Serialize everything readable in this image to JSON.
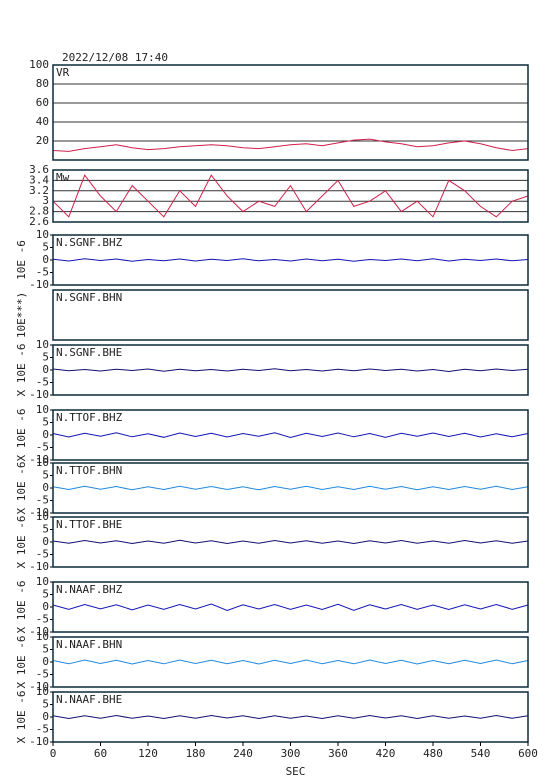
{
  "chart_data": [
    {
      "type": "line",
      "title": "2022/12/08 17:40",
      "label": "VR",
      "color": "#d0204a",
      "ylim": [
        0,
        100
      ],
      "yticks": [
        20,
        40,
        60,
        80,
        100
      ],
      "grid": true,
      "xlim": [
        0,
        600
      ],
      "x": [
        0,
        20,
        40,
        60,
        80,
        100,
        120,
        140,
        160,
        180,
        200,
        220,
        240,
        260,
        280,
        300,
        320,
        340,
        360,
        380,
        400,
        420,
        440,
        460,
        480,
        500,
        520,
        540,
        560,
        580,
        600
      ],
      "values": [
        10,
        9,
        12,
        14,
        16,
        13,
        11,
        12,
        14,
        15,
        16,
        15,
        13,
        12,
        14,
        16,
        17,
        15,
        18,
        21,
        22,
        19,
        17,
        14,
        15,
        18,
        20,
        17,
        13,
        10,
        12
      ]
    },
    {
      "type": "line",
      "label": "Mw",
      "color": "#d0204a",
      "ylim": [
        2.6,
        3.6
      ],
      "yticks": [
        2.6,
        2.8,
        3,
        3.2,
        3.4,
        3.6
      ],
      "grid": true,
      "xlim": [
        0,
        600
      ],
      "x": [
        0,
        20,
        40,
        60,
        80,
        100,
        120,
        140,
        160,
        180,
        200,
        220,
        240,
        260,
        280,
        300,
        320,
        340,
        360,
        380,
        400,
        420,
        440,
        460,
        480,
        500,
        520,
        540,
        560,
        580,
        600
      ],
      "values": [
        3.0,
        2.7,
        3.5,
        3.1,
        2.8,
        3.3,
        3.0,
        2.7,
        3.2,
        2.9,
        3.5,
        3.1,
        2.8,
        3.0,
        2.9,
        3.3,
        2.8,
        3.1,
        3.4,
        2.9,
        3.0,
        3.2,
        2.8,
        3.0,
        2.7,
        3.4,
        3.2,
        2.9,
        2.7,
        3.0,
        3.1
      ]
    },
    {
      "type": "line",
      "label": "N.SGNF.BHZ",
      "ylabel": "10E -6",
      "color": "#1414b4",
      "ylim": [
        -10,
        10
      ],
      "yticks": [
        -10,
        -5,
        0,
        5,
        10
      ],
      "xlim": [
        0,
        600
      ],
      "x": [
        0,
        20,
        40,
        60,
        80,
        100,
        120,
        140,
        160,
        180,
        200,
        220,
        240,
        260,
        280,
        300,
        320,
        340,
        360,
        380,
        400,
        420,
        440,
        460,
        480,
        500,
        520,
        540,
        560,
        580,
        600
      ],
      "values": [
        0.3,
        -0.4,
        0.5,
        -0.2,
        0.4,
        -0.5,
        0.2,
        -0.3,
        0.4,
        -0.4,
        0.3,
        -0.2,
        0.5,
        -0.3,
        0.2,
        -0.4,
        0.4,
        -0.3,
        0.3,
        -0.5,
        0.2,
        -0.2,
        0.4,
        -0.3,
        0.5,
        -0.4,
        0.3,
        -0.2,
        0.4,
        -0.3,
        0.2
      ]
    },
    {
      "type": "line",
      "label": "N.SGNF.BHN",
      "ylabel": "10E***)",
      "xlim": [
        0,
        600
      ]
    },
    {
      "type": "line",
      "label": "N.SGNF.BHE",
      "ylabel": "X 10E -6",
      "color": "#101070",
      "ylim": [
        -10,
        10
      ],
      "yticks": [
        -10,
        -5,
        0,
        5,
        10
      ],
      "xlim": [
        0,
        600
      ],
      "x": [
        0,
        20,
        40,
        60,
        80,
        100,
        120,
        140,
        160,
        180,
        200,
        220,
        240,
        260,
        280,
        300,
        320,
        340,
        360,
        380,
        400,
        420,
        440,
        460,
        480,
        500,
        520,
        540,
        560,
        580,
        600
      ],
      "values": [
        0.4,
        -0.3,
        0.2,
        -0.4,
        0.3,
        -0.2,
        0.4,
        -0.5,
        0.3,
        -0.3,
        0.2,
        -0.4,
        0.3,
        -0.2,
        0.5,
        -0.3,
        0.2,
        -0.4,
        0.3,
        -0.3,
        0.4,
        -0.2,
        0.3,
        -0.4,
        0.2,
        -0.6,
        0.3,
        -0.3,
        0.4,
        -0.2,
        0.3
      ]
    },
    {
      "type": "line",
      "label": "N.TTOF.BHZ",
      "ylabel": "X 10E -6",
      "color": "#1414b4",
      "ylim": [
        -10,
        10
      ],
      "yticks": [
        -10,
        -5,
        0,
        5,
        10
      ],
      "xlim": [
        0,
        600
      ],
      "x": [
        0,
        20,
        40,
        60,
        80,
        100,
        120,
        140,
        160,
        180,
        200,
        220,
        240,
        260,
        280,
        300,
        320,
        340,
        360,
        380,
        400,
        420,
        440,
        460,
        480,
        500,
        520,
        540,
        560,
        580,
        600
      ],
      "values": [
        0.6,
        -0.8,
        0.7,
        -0.5,
        0.9,
        -0.7,
        0.5,
        -0.9,
        0.8,
        -0.6,
        0.7,
        -0.8,
        0.6,
        -0.5,
        0.9,
        -1.0,
        0.7,
        -0.6,
        0.8,
        -0.7,
        0.6,
        -0.9,
        0.7,
        -0.5,
        0.8,
        -0.6,
        0.7,
        -0.8,
        0.5,
        -0.7,
        0.6
      ]
    },
    {
      "type": "line",
      "label": "N.TTOF.BHN",
      "ylabel": "X 10E -6",
      "color": "#2088e0",
      "ylim": [
        -10,
        10
      ],
      "yticks": [
        -10,
        -5,
        0,
        5,
        10
      ],
      "xlim": [
        0,
        600
      ],
      "x": [
        0,
        20,
        40,
        60,
        80,
        100,
        120,
        140,
        160,
        180,
        200,
        220,
        240,
        260,
        280,
        300,
        320,
        340,
        360,
        380,
        400,
        420,
        440,
        460,
        480,
        500,
        520,
        540,
        560,
        580,
        600
      ],
      "values": [
        0.5,
        -0.6,
        0.7,
        -0.5,
        0.6,
        -0.7,
        0.5,
        -0.6,
        0.7,
        -0.5,
        0.6,
        -0.6,
        0.5,
        -0.7,
        0.6,
        -0.5,
        0.7,
        -0.6,
        0.5,
        -0.6,
        0.7,
        -0.5,
        0.6,
        -0.7,
        0.5,
        -0.6,
        0.6,
        -0.5,
        0.7,
        -0.6,
        0.5
      ]
    },
    {
      "type": "line",
      "label": "N.TTOF.BHE",
      "ylabel": "X 10E -6",
      "color": "#101070",
      "ylim": [
        -10,
        10
      ],
      "yticks": [
        -10,
        -5,
        0,
        5,
        10
      ],
      "xlim": [
        0,
        600
      ],
      "x": [
        0,
        20,
        40,
        60,
        80,
        100,
        120,
        140,
        160,
        180,
        200,
        220,
        240,
        260,
        280,
        300,
        320,
        340,
        360,
        380,
        400,
        420,
        440,
        460,
        480,
        500,
        520,
        540,
        560,
        580,
        600
      ],
      "values": [
        0.4,
        -0.5,
        0.6,
        -0.4,
        0.5,
        -0.6,
        0.4,
        -0.5,
        0.7,
        -0.4,
        0.5,
        -0.6,
        0.4,
        -0.5,
        0.6,
        -0.4,
        0.5,
        -0.5,
        0.4,
        -0.6,
        0.5,
        -0.4,
        0.6,
        -0.5,
        0.4,
        -0.5,
        0.6,
        -0.4,
        0.5,
        -0.5,
        0.4
      ]
    },
    {
      "type": "line",
      "label": "N.NAAF.BHZ",
      "ylabel": "X 10E -6",
      "color": "#1414b4",
      "ylim": [
        -10,
        10
      ],
      "yticks": [
        -10,
        -5,
        0,
        5,
        10
      ],
      "xlim": [
        0,
        600
      ],
      "x": [
        0,
        20,
        40,
        60,
        80,
        100,
        120,
        140,
        160,
        180,
        200,
        220,
        240,
        260,
        280,
        300,
        320,
        340,
        360,
        380,
        400,
        420,
        440,
        460,
        480,
        500,
        520,
        540,
        560,
        580,
        600
      ],
      "values": [
        0.8,
        -0.9,
        1.0,
        -0.7,
        0.9,
        -1.1,
        0.8,
        -0.9,
        1.0,
        -0.8,
        1.2,
        -1.4,
        0.9,
        -0.8,
        1.0,
        -0.9,
        0.8,
        -1.0,
        1.1,
        -1.3,
        0.9,
        -0.8,
        1.0,
        -0.9,
        0.8,
        -1.0,
        0.9,
        -0.8,
        1.0,
        -0.9,
        0.8
      ]
    },
    {
      "type": "line",
      "label": "N.NAAF.BHN",
      "ylabel": "X 10E -6",
      "color": "#2088e0",
      "ylim": [
        -10,
        10
      ],
      "yticks": [
        -10,
        -5,
        0,
        5,
        10
      ],
      "xlim": [
        0,
        600
      ],
      "x": [
        0,
        20,
        40,
        60,
        80,
        100,
        120,
        140,
        160,
        180,
        200,
        220,
        240,
        260,
        280,
        300,
        320,
        340,
        360,
        380,
        400,
        420,
        440,
        460,
        480,
        500,
        520,
        540,
        560,
        580,
        600
      ],
      "values": [
        0.6,
        -0.7,
        0.8,
        -0.6,
        0.7,
        -0.8,
        0.6,
        -0.7,
        0.8,
        -0.6,
        0.7,
        -0.7,
        0.6,
        -0.8,
        0.7,
        -0.6,
        0.8,
        -0.7,
        0.6,
        -0.7,
        0.8,
        -0.6,
        0.7,
        -0.8,
        0.6,
        -0.7,
        0.7,
        -0.6,
        0.8,
        -0.7,
        0.6
      ]
    },
    {
      "type": "line",
      "label": "N.NAAF.BHE",
      "ylabel": "X 10E -6",
      "xlabel": "SEC",
      "color": "#101070",
      "ylim": [
        -10,
        10
      ],
      "yticks": [
        -10,
        -5,
        0,
        5,
        10
      ],
      "xlim": [
        0,
        600
      ],
      "xticks": [
        0,
        60,
        120,
        180,
        240,
        300,
        360,
        420,
        480,
        540,
        600
      ],
      "x": [
        0,
        20,
        40,
        60,
        80,
        100,
        120,
        140,
        160,
        180,
        200,
        220,
        240,
        260,
        280,
        300,
        320,
        340,
        360,
        380,
        400,
        420,
        440,
        460,
        480,
        500,
        520,
        540,
        560,
        580,
        600
      ],
      "values": [
        0.5,
        -0.6,
        0.5,
        -0.5,
        0.6,
        -0.5,
        0.4,
        -0.6,
        0.5,
        -0.5,
        0.6,
        -0.4,
        0.5,
        -0.6,
        0.5,
        -0.5,
        0.4,
        -0.6,
        0.5,
        -0.5,
        0.6,
        -0.4,
        0.5,
        -0.6,
        0.5,
        -0.5,
        0.4,
        -0.5,
        0.6,
        -0.5,
        0.5
      ]
    }
  ]
}
